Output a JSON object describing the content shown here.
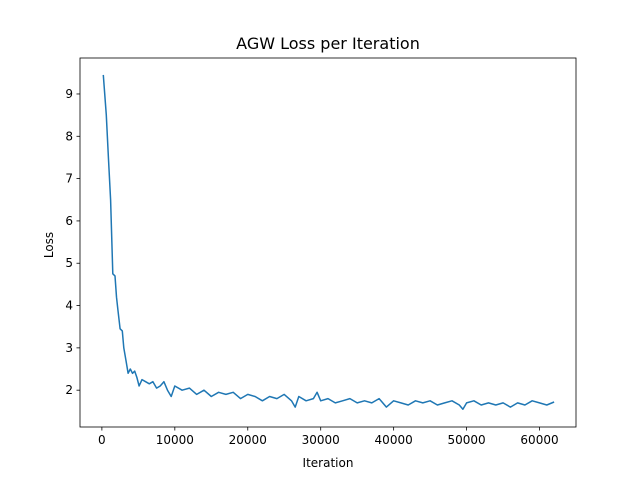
{
  "chart_data": {
    "type": "line",
    "title": "AGW Loss per Iteration",
    "xlabel": "Iteration",
    "ylabel": "Loss",
    "xlim": [
      -3000,
      65000
    ],
    "ylim": [
      1.13,
      9.85
    ],
    "xticks": [
      0,
      10000,
      20000,
      30000,
      40000,
      50000,
      60000
    ],
    "yticks": [
      2,
      3,
      4,
      5,
      6,
      7,
      8,
      9
    ],
    "grid": false,
    "line_color": "#1f77b4",
    "series": [
      {
        "x": [
          200,
          600,
          900,
          1200,
          1500,
          1800,
          2000,
          2200,
          2500,
          2800,
          3000,
          3300,
          3600,
          3900,
          4200,
          4500,
          4800,
          5100,
          5500,
          6000,
          6500,
          7000,
          7500,
          8000,
          8500,
          9000,
          9500,
          10000,
          11000,
          12000,
          13000,
          14000,
          15000,
          16000,
          17000,
          18000,
          19000,
          20000,
          21000,
          22000,
          23000,
          24000,
          25000,
          26000,
          26500,
          27000,
          28000,
          29000,
          29500,
          30000,
          31000,
          32000,
          33000,
          34000,
          35000,
          36000,
          37000,
          38000,
          39000,
          40000,
          41000,
          42000,
          43000,
          44000,
          45000,
          46000,
          47000,
          48000,
          49000,
          49500,
          50000,
          51000,
          52000,
          53000,
          54000,
          55000,
          56000,
          57000,
          58000,
          59000,
          60000,
          61000,
          62000
        ],
        "y": [
          9.45,
          8.5,
          7.5,
          6.5,
          4.75,
          4.7,
          4.2,
          3.9,
          3.45,
          3.4,
          3.0,
          2.7,
          2.4,
          2.5,
          2.4,
          2.45,
          2.3,
          2.1,
          2.25,
          2.2,
          2.15,
          2.2,
          2.05,
          2.1,
          2.2,
          2.0,
          1.85,
          2.1,
          2.0,
          2.05,
          1.9,
          2.0,
          1.85,
          1.95,
          1.9,
          1.95,
          1.8,
          1.9,
          1.85,
          1.75,
          1.85,
          1.8,
          1.9,
          1.75,
          1.6,
          1.85,
          1.75,
          1.8,
          1.95,
          1.75,
          1.8,
          1.7,
          1.75,
          1.8,
          1.7,
          1.75,
          1.7,
          1.8,
          1.6,
          1.75,
          1.7,
          1.65,
          1.75,
          1.7,
          1.75,
          1.65,
          1.7,
          1.75,
          1.65,
          1.55,
          1.7,
          1.75,
          1.65,
          1.7,
          1.65,
          1.7,
          1.6,
          1.7,
          1.65,
          1.75,
          1.7,
          1.65,
          1.72
        ]
      }
    ]
  }
}
